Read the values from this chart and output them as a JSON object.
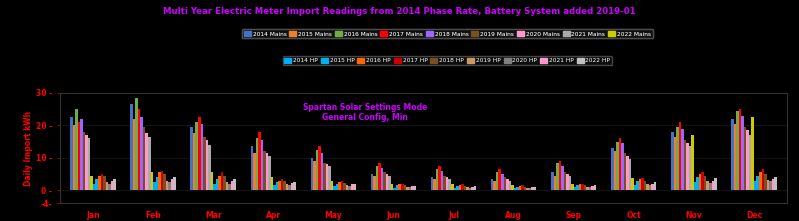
{
  "title": "Multi Year Electric Meter Import Readings from 2014 Phase Rate, Battery System added 2019-01",
  "ylabel": "Daily Import kWh",
  "annotation_text": "Spartan Solar Settings Mode\nGeneral Config, Min",
  "background_color": "#000000",
  "text_color": "#cc00ff",
  "axis_label_color": "#ff0000",
  "tick_color": "#ff0000",
  "ylim": [
    -4,
    30
  ],
  "yticks": [
    -4,
    0,
    10,
    20,
    30
  ],
  "ytick_labels": [
    "-4-",
    "0 -",
    "10 -",
    "20 -",
    "30 -"
  ],
  "months": [
    "Jan",
    "Feb",
    "Mar",
    "Apr",
    "May",
    "Jun",
    "Jul",
    "Aug",
    "Sep",
    "Oct",
    "Nov",
    "Dec"
  ],
  "series": [
    {
      "label": "2014 Mains",
      "color": "#4472c4"
    },
    {
      "label": "2015 Mains",
      "color": "#ed7d31"
    },
    {
      "label": "2016 Mains",
      "color": "#70ad47"
    },
    {
      "label": "2017 Mains",
      "color": "#ff0000"
    },
    {
      "label": "2018 Mains",
      "color": "#9966ff"
    },
    {
      "label": "2019 Mains",
      "color": "#7b4f24"
    },
    {
      "label": "2020 Mains",
      "color": "#ff99cc"
    },
    {
      "label": "2021 Mains",
      "color": "#aaaaaa"
    },
    {
      "label": "2022 Mains",
      "color": "#cccc00"
    },
    {
      "label": "2014 HP",
      "color": "#00aaff"
    },
    {
      "label": "2015 HP",
      "color": "#00b0f0"
    },
    {
      "label": "2016 HP",
      "color": "#ff6600"
    },
    {
      "label": "2017 HP",
      "color": "#cc0000"
    },
    {
      "label": "2018 HP",
      "color": "#7b4f24"
    },
    {
      "label": "2019 HP",
      "color": "#cc9966"
    },
    {
      "label": "2020 HP",
      "color": "#808080"
    },
    {
      "label": "2021 HP",
      "color": "#ff99cc"
    },
    {
      "label": "2022 HP",
      "color": "#c0c0c0"
    }
  ],
  "data": [
    [
      22.5,
      26.5,
      19.5,
      13.5,
      10.0,
      5.0,
      4.0,
      3.5,
      5.5,
      13.0,
      18.0,
      22.0
    ],
    [
      20.0,
      22.0,
      17.5,
      11.5,
      9.0,
      4.5,
      3.5,
      3.0,
      4.5,
      12.0,
      16.5,
      20.5
    ],
    [
      25.0,
      28.5,
      21.0,
      16.0,
      12.5,
      7.5,
      6.5,
      5.5,
      8.5,
      15.0,
      19.5,
      24.5
    ],
    [
      21.0,
      25.0,
      22.5,
      18.0,
      13.5,
      8.5,
      7.5,
      6.5,
      9.0,
      16.0,
      21.0,
      25.0
    ],
    [
      22.0,
      22.5,
      20.5,
      15.5,
      11.5,
      7.0,
      6.0,
      5.0,
      7.5,
      14.5,
      19.0,
      23.0
    ],
    [
      18.0,
      19.5,
      16.5,
      12.0,
      8.5,
      5.5,
      4.5,
      4.0,
      5.5,
      11.5,
      15.5,
      19.5
    ],
    [
      17.0,
      17.5,
      15.5,
      11.5,
      8.0,
      5.0,
      4.0,
      3.5,
      5.0,
      10.5,
      14.5,
      18.5
    ],
    [
      16.0,
      16.5,
      14.0,
      10.5,
      7.5,
      4.5,
      3.5,
      3.0,
      4.5,
      9.5,
      13.5,
      17.0
    ],
    [
      4.5,
      5.5,
      5.5,
      4.0,
      3.0,
      2.0,
      1.8,
      1.5,
      2.0,
      3.8,
      17.0,
      22.5
    ],
    [
      2.0,
      2.5,
      2.0,
      1.5,
      1.2,
      0.8,
      0.7,
      0.6,
      0.9,
      1.5,
      2.5,
      3.0
    ],
    [
      3.5,
      4.0,
      3.5,
      2.5,
      2.0,
      1.5,
      1.2,
      1.0,
      1.5,
      2.8,
      4.0,
      4.5
    ],
    [
      4.5,
      5.5,
      4.5,
      3.0,
      2.5,
      1.8,
      1.5,
      1.2,
      1.8,
      3.5,
      5.0,
      5.5
    ],
    [
      5.0,
      6.0,
      5.5,
      3.5,
      2.8,
      2.0,
      1.8,
      1.5,
      2.0,
      3.8,
      5.5,
      6.5
    ],
    [
      4.5,
      5.0,
      4.5,
      3.0,
      2.2,
      1.5,
      1.3,
      1.1,
      1.5,
      3.0,
      4.5,
      5.0
    ],
    [
      2.5,
      3.0,
      2.5,
      2.0,
      1.5,
      1.0,
      0.9,
      0.8,
      1.0,
      1.8,
      2.8,
      3.2
    ],
    [
      2.0,
      2.5,
      2.0,
      1.5,
      1.2,
      0.9,
      0.8,
      0.7,
      0.9,
      1.5,
      2.2,
      2.8
    ],
    [
      3.0,
      3.5,
      3.0,
      2.2,
      1.8,
      1.2,
      1.0,
      0.9,
      1.2,
      2.0,
      3.0,
      3.5
    ],
    [
      3.5,
      4.0,
      3.5,
      2.5,
      2.0,
      1.4,
      1.2,
      1.1,
      1.5,
      2.5,
      3.8,
      4.2
    ]
  ]
}
